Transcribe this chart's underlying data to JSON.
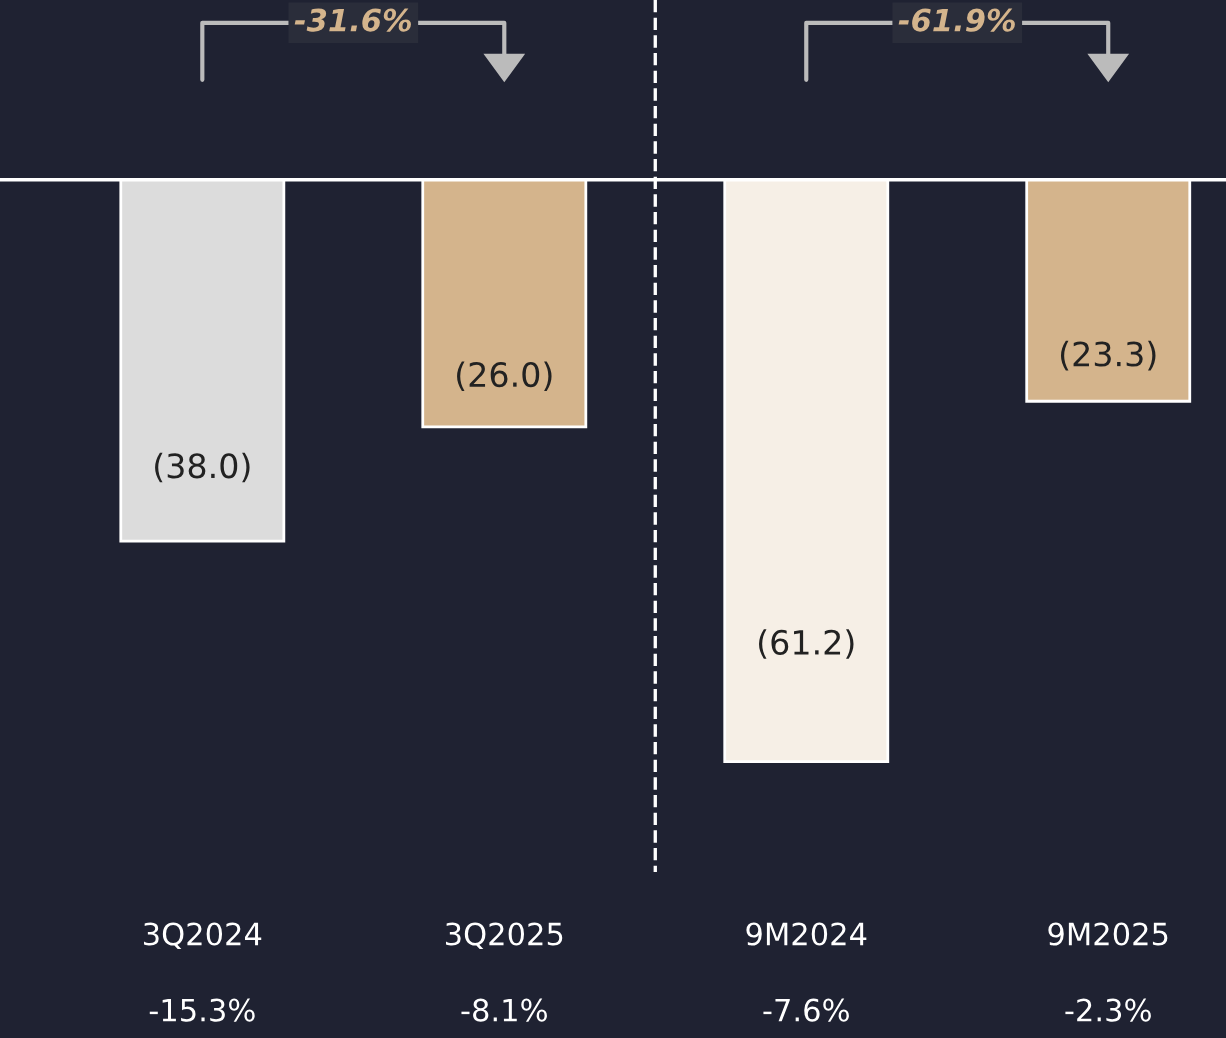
{
  "chart_data": {
    "type": "bar",
    "categories": [
      "3Q2024",
      "3Q2025",
      "9M2024",
      "9M2025"
    ],
    "values": [
      -38.0,
      -26.0,
      -61.2,
      -23.3
    ],
    "colors": [
      "#dcdcdc",
      "#d4b48c",
      "#f6efe6",
      "#d4b48c"
    ],
    "value_labels": [
      "(38.0)",
      "(26.0)",
      "(61.2)",
      "(23.3)"
    ],
    "ylim": [
      -72.8,
      18.9
    ],
    "tick_labels": "x",
    "annotations": [
      "-15.3%",
      "-8.1%",
      "-7.6%",
      "-2.3%",
      "-31.6%",
      "-61.9%"
    ]
  }
}
